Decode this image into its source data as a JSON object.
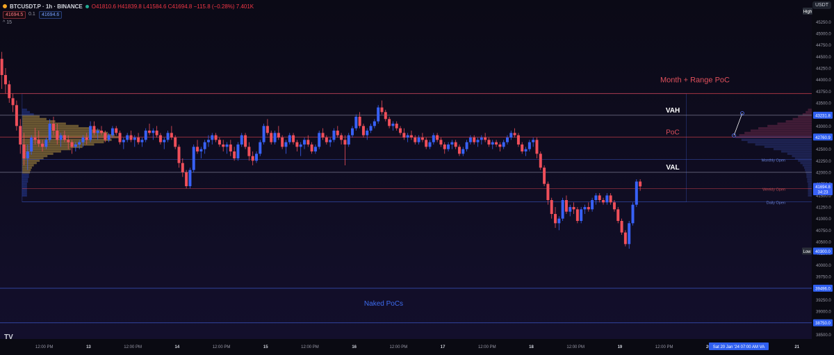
{
  "header": {
    "symbol": "BTCUSDT.P · 1h · BINANCE",
    "ohlc": "O41810.6  H41839.8  L41584.6  C41694.8  −115.8 (−0.28%)  7.401K",
    "sell_price": "41694.5",
    "spread": "0.1",
    "buy_price": "41694.6",
    "collapse_label": "^ 15",
    "currency": "USDT"
  },
  "colors": {
    "background": "#0a0a12",
    "up_candle": "#3861f6",
    "down_candle": "#ef4f5a",
    "poc_line": "#d9434f",
    "value_area_line": "#8a8aa0",
    "open_line": "#3d57c7",
    "profile_gold": "#b59442",
    "profile_blue": "#2d47b3"
  },
  "chart_data": {
    "type": "candlestick",
    "title": "BTCUSDT.P · 1h · BINANCE",
    "ylim": [
      38400,
      45600
    ],
    "y_ticks": [
      38500,
      38750,
      39000,
      39250,
      39500,
      39750,
      40000,
      40250,
      40500,
      40750,
      41000,
      41250,
      41500,
      41750,
      42000,
      42250,
      42500,
      42750,
      43000,
      43250,
      43500,
      43750,
      44000,
      44250,
      44500,
      44750,
      45000,
      45250
    ],
    "x_labels": [
      "12:00 PM",
      "13",
      "12:00 PM",
      "14",
      "12:00 PM",
      "15",
      "12:00 PM",
      "16",
      "12:00 PM",
      "17",
      "12:00 PM",
      "18",
      "12:00 PM",
      "19",
      "12:00 PM",
      "20",
      "21"
    ],
    "x_label_hours": [
      12,
      24,
      36,
      48,
      60,
      72,
      84,
      96,
      108,
      120,
      132,
      144,
      156,
      168,
      180,
      192,
      216
    ],
    "x_range_hours": [
      0,
      220
    ],
    "candles_hours_start": 0,
    "candles": [
      [
        44450,
        44600,
        43800,
        44100
      ],
      [
        44100,
        44250,
        43700,
        43900
      ],
      [
        43900,
        43980,
        43500,
        43600
      ],
      [
        43600,
        43700,
        43300,
        43450
      ],
      [
        43450,
        43550,
        42900,
        43000
      ],
      [
        43000,
        43150,
        42400,
        42600
      ],
      [
        42600,
        42850,
        42150,
        42300
      ],
      [
        42300,
        42600,
        42050,
        42450
      ],
      [
        42450,
        42800,
        42380,
        42750
      ],
      [
        42750,
        42960,
        42600,
        42700
      ],
      [
        42700,
        42900,
        42550,
        42620
      ],
      [
        42620,
        42700,
        42450,
        42550
      ],
      [
        42550,
        42750,
        42500,
        42700
      ],
      [
        42700,
        43150,
        42650,
        43050
      ],
      [
        43050,
        43200,
        42800,
        42900
      ],
      [
        42900,
        43050,
        42600,
        42700
      ],
      [
        42700,
        42850,
        42550,
        42800
      ],
      [
        42800,
        42900,
        42650,
        42700
      ],
      [
        42700,
        42800,
        42500,
        42650
      ],
      [
        42650,
        42700,
        42400,
        42550
      ],
      [
        42550,
        42650,
        42450,
        42600
      ],
      [
        42600,
        42700,
        42500,
        42650
      ],
      [
        42650,
        42800,
        42550,
        42750
      ],
      [
        42750,
        42850,
        42600,
        42700
      ],
      [
        42700,
        43100,
        42650,
        43000
      ],
      [
        43000,
        43100,
        42800,
        42850
      ],
      [
        42850,
        42950,
        42700,
        42900
      ],
      [
        42900,
        43000,
        42800,
        42850
      ],
      [
        42850,
        42900,
        42650,
        42700
      ],
      [
        42700,
        42850,
        42650,
        42800
      ],
      [
        42800,
        43000,
        42750,
        42950
      ],
      [
        42950,
        43000,
        42800,
        42850
      ],
      [
        42850,
        42900,
        42600,
        42650
      ],
      [
        42650,
        42750,
        42500,
        42700
      ],
      [
        42700,
        42850,
        42650,
        42800
      ],
      [
        42800,
        42900,
        42650,
        42700
      ],
      [
        42700,
        42800,
        42550,
        42750
      ],
      [
        42750,
        42850,
        42600,
        42650
      ],
      [
        42650,
        42750,
        42550,
        42700
      ],
      [
        42700,
        42950,
        42650,
        42900
      ],
      [
        42900,
        43050,
        42800,
        42850
      ],
      [
        42850,
        42950,
        42700,
        42900
      ],
      [
        42900,
        43000,
        42750,
        42800
      ],
      [
        42800,
        42850,
        42600,
        42650
      ],
      [
        42650,
        42750,
        42500,
        42700
      ],
      [
        42700,
        42900,
        42650,
        42850
      ],
      [
        42850,
        43000,
        42700,
        42750
      ],
      [
        42750,
        42800,
        42500,
        42550
      ],
      [
        42550,
        42600,
        42100,
        42200
      ],
      [
        42200,
        42300,
        41900,
        42000
      ],
      [
        42000,
        42050,
        41650,
        41700
      ],
      [
        41700,
        42100,
        41650,
        42050
      ],
      [
        42050,
        42600,
        42000,
        42550
      ],
      [
        42550,
        42700,
        42400,
        42450
      ],
      [
        42450,
        42550,
        42300,
        42500
      ],
      [
        42500,
        42700,
        42400,
        42650
      ],
      [
        42650,
        42800,
        42550,
        42700
      ],
      [
        42700,
        42850,
        42600,
        42800
      ],
      [
        42800,
        42850,
        42650,
        42700
      ],
      [
        42700,
        42750,
        42550,
        42600
      ],
      [
        42600,
        42700,
        42450,
        42550
      ],
      [
        42550,
        42650,
        42400,
        42600
      ],
      [
        42600,
        42700,
        42350,
        42450
      ],
      [
        42450,
        42550,
        42250,
        42300
      ],
      [
        42300,
        42650,
        42250,
        42600
      ],
      [
        42600,
        42850,
        42550,
        42800
      ],
      [
        42800,
        42850,
        42500,
        42550
      ],
      [
        42550,
        42650,
        42250,
        42350
      ],
      [
        42350,
        42450,
        42150,
        42250
      ],
      [
        42250,
        42450,
        42200,
        42400
      ],
      [
        42400,
        42700,
        42350,
        42650
      ],
      [
        42650,
        43050,
        42600,
        43000
      ],
      [
        43000,
        43150,
        42800,
        42850
      ],
      [
        42850,
        42900,
        42600,
        42650
      ],
      [
        42650,
        42900,
        42600,
        42850
      ],
      [
        42850,
        43000,
        42700,
        42750
      ],
      [
        42750,
        42800,
        42500,
        42550
      ],
      [
        42550,
        42700,
        42400,
        42650
      ],
      [
        42650,
        42850,
        42600,
        42800
      ],
      [
        42800,
        42850,
        42600,
        42650
      ],
      [
        42650,
        42700,
        42450,
        42550
      ],
      [
        42550,
        42650,
        42350,
        42600
      ],
      [
        42600,
        42750,
        42500,
        42700
      ],
      [
        42700,
        42800,
        42550,
        42600
      ],
      [
        42600,
        42650,
        42400,
        42450
      ],
      [
        42450,
        42600,
        42400,
        42550
      ],
      [
        42550,
        42900,
        42500,
        42850
      ],
      [
        42850,
        42950,
        42700,
        42750
      ],
      [
        42750,
        42800,
        42600,
        42650
      ],
      [
        42650,
        42750,
        42550,
        42700
      ],
      [
        42700,
        42950,
        42650,
        42900
      ],
      [
        42900,
        43000,
        42750,
        42800
      ],
      [
        42800,
        42850,
        42600,
        42700
      ],
      [
        42700,
        42800,
        42150,
        42600
      ],
      [
        42600,
        42850,
        42550,
        42800
      ],
      [
        42800,
        43000,
        42750,
        42950
      ],
      [
        42950,
        43250,
        42900,
        43200
      ],
      [
        43200,
        43300,
        42950,
        43000
      ],
      [
        43000,
        43050,
        42750,
        42800
      ],
      [
        42800,
        42950,
        42700,
        42900
      ],
      [
        42900,
        43050,
        42850,
        43000
      ],
      [
        43000,
        43150,
        42950,
        43100
      ],
      [
        43100,
        43450,
        43050,
        43400
      ],
      [
        43400,
        43550,
        43250,
        43300
      ],
      [
        43300,
        43350,
        43100,
        43150
      ],
      [
        43150,
        43200,
        42950,
        43000
      ],
      [
        43000,
        43100,
        42900,
        43050
      ],
      [
        43050,
        43100,
        42900,
        42950
      ],
      [
        42950,
        43000,
        42800,
        42850
      ],
      [
        42850,
        42950,
        42700,
        42750
      ],
      [
        42750,
        42850,
        42650,
        42800
      ],
      [
        42800,
        42900,
        42700,
        42750
      ],
      [
        42750,
        42800,
        42600,
        42650
      ],
      [
        42650,
        42800,
        42600,
        42750
      ],
      [
        42750,
        42850,
        42650,
        42700
      ],
      [
        42700,
        42750,
        42500,
        42550
      ],
      [
        42550,
        42700,
        42500,
        42650
      ],
      [
        42650,
        42850,
        42600,
        42800
      ],
      [
        42800,
        42850,
        42650,
        42700
      ],
      [
        42700,
        42750,
        42550,
        42600
      ],
      [
        42600,
        42650,
        42400,
        42500
      ],
      [
        42500,
        42650,
        42450,
        42600
      ],
      [
        42600,
        42700,
        42500,
        42650
      ],
      [
        42650,
        42700,
        42500,
        42550
      ],
      [
        42550,
        42600,
        42350,
        42400
      ],
      [
        42400,
        42550,
        42350,
        42500
      ],
      [
        42500,
        42700,
        42450,
        42650
      ],
      [
        42650,
        42800,
        42600,
        42750
      ],
      [
        42750,
        42800,
        42600,
        42650
      ],
      [
        42650,
        42750,
        42550,
        42700
      ],
      [
        42700,
        42800,
        42600,
        42750
      ],
      [
        42750,
        42850,
        42650,
        42700
      ],
      [
        42700,
        42750,
        42550,
        42600
      ],
      [
        42600,
        42700,
        42500,
        42650
      ],
      [
        42650,
        42700,
        42550,
        42600
      ],
      [
        42600,
        42650,
        42450,
        42550
      ],
      [
        42550,
        42700,
        42500,
        42650
      ],
      [
        42650,
        42800,
        42600,
        42750
      ],
      [
        42750,
        42900,
        42700,
        42850
      ],
      [
        42850,
        42950,
        42750,
        42800
      ],
      [
        42800,
        42850,
        42550,
        42600
      ],
      [
        42600,
        42650,
        42400,
        42450
      ],
      [
        42450,
        42550,
        42350,
        42500
      ],
      [
        42500,
        42700,
        42450,
        42650
      ],
      [
        42650,
        42750,
        42550,
        42700
      ],
      [
        42700,
        42750,
        42300,
        42400
      ],
      [
        42400,
        42450,
        42050,
        42100
      ],
      [
        42100,
        42150,
        41700,
        41750
      ],
      [
        41750,
        41800,
        41300,
        41400
      ],
      [
        41400,
        41450,
        41000,
        41100
      ],
      [
        41100,
        41250,
        40800,
        40900
      ],
      [
        40900,
        41050,
        40750,
        41000
      ],
      [
        41000,
        41450,
        40950,
        41400
      ],
      [
        41400,
        41500,
        41100,
        41150
      ],
      [
        41150,
        41300,
        41050,
        41250
      ],
      [
        41250,
        41350,
        41100,
        41200
      ],
      [
        41200,
        41250,
        40900,
        40950
      ],
      [
        40950,
        41250,
        40900,
        41200
      ],
      [
        41200,
        41300,
        41100,
        41250
      ],
      [
        41250,
        41350,
        41150,
        41200
      ],
      [
        41200,
        41450,
        41150,
        41400
      ],
      [
        41400,
        41550,
        41300,
        41500
      ],
      [
        41500,
        41550,
        41350,
        41400
      ],
      [
        41400,
        41450,
        41300,
        41350
      ],
      [
        41350,
        41550,
        41300,
        41500
      ],
      [
        41500,
        41550,
        41300,
        41350
      ],
      [
        41350,
        41400,
        41150,
        41200
      ],
      [
        41200,
        41250,
        40900,
        40950
      ],
      [
        40950,
        41000,
        40650,
        40700
      ],
      [
        40700,
        40750,
        40400,
        40450
      ],
      [
        40450,
        40950,
        40350,
        40900
      ],
      [
        40900,
        41350,
        40850,
        41300
      ],
      [
        41300,
        41850,
        41250,
        41800
      ],
      [
        41800,
        41850,
        41600,
        41695
      ]
    ],
    "volume_profile": [
      [
        43350,
        0.05
      ],
      [
        43300,
        0.08
      ],
      [
        43250,
        0.12
      ],
      [
        43200,
        0.18
      ],
      [
        43150,
        0.25
      ],
      [
        43100,
        0.34
      ],
      [
        43050,
        0.45
      ],
      [
        43000,
        0.58
      ],
      [
        42950,
        0.7
      ],
      [
        42900,
        0.8
      ],
      [
        42850,
        0.88
      ],
      [
        42800,
        0.95
      ],
      [
        42760,
        1.0
      ],
      [
        42700,
        0.92
      ],
      [
        42650,
        0.84
      ],
      [
        42600,
        0.74
      ],
      [
        42550,
        0.62
      ],
      [
        42500,
        0.5
      ],
      [
        42450,
        0.4
      ],
      [
        42400,
        0.32
      ],
      [
        42350,
        0.26
      ],
      [
        42300,
        0.22
      ],
      [
        42250,
        0.18
      ],
      [
        42200,
        0.15
      ],
      [
        42150,
        0.12
      ],
      [
        42100,
        0.1
      ],
      [
        42050,
        0.09
      ],
      [
        42000,
        0.08
      ],
      [
        41950,
        0.07
      ],
      [
        41900,
        0.07
      ],
      [
        41850,
        0.06
      ],
      [
        41800,
        0.06
      ],
      [
        41750,
        0.05
      ],
      [
        41700,
        0.05
      ],
      [
        41650,
        0.05
      ],
      [
        41600,
        0.05
      ],
      [
        41550,
        0.05
      ],
      [
        41500,
        0.05
      ]
    ],
    "levels": [
      {
        "label": "Month + Range PoC",
        "price": 43700,
        "color": "#d9434f"
      },
      {
        "label": "VAH",
        "price": 43231.8,
        "color": "#8a8aa0"
      },
      {
        "label": "PoC",
        "price": 42760.9,
        "color": "#d9434f"
      },
      {
        "label": "VAL",
        "price": 42000,
        "color": "#8a8aa0"
      },
      {
        "label": "Naked PoCs",
        "price": 39496.0,
        "color": "#3d57c7"
      },
      {
        "label": "",
        "price": 38750.0,
        "color": "#3d57c7"
      }
    ],
    "small_lines": [
      {
        "label": "Monthly Open",
        "price": 42280,
        "color": "#3d57c7"
      },
      {
        "label": "Weekly Open",
        "price": 41650,
        "color": "#d9434f"
      },
      {
        "label": "Daily Open",
        "price": 41360,
        "color": "#3d57c7"
      }
    ],
    "price_tags": [
      {
        "text": "High",
        "price": 45600,
        "kind": "highlow"
      },
      {
        "text": "43231.8",
        "price": 43231.8,
        "kind": "tag"
      },
      {
        "text": "42760.9",
        "price": 42760.9,
        "kind": "tag"
      },
      {
        "text": "41694.8",
        "price": 41694.8,
        "kind": "current"
      },
      {
        "text": "34:23",
        "price": 41580,
        "kind": "current"
      },
      {
        "text": "40300.0",
        "price": 40300,
        "kind": "tag"
      },
      {
        "text": "Low",
        "price": 40300,
        "kind": "highlow-low"
      },
      {
        "text": "39496.0",
        "price": 39496.0,
        "kind": "tag"
      },
      {
        "text": "38750.0",
        "price": 38750.0,
        "kind": "tag"
      }
    ],
    "crosshair_label": "Sat 20 Jan '24   07:00 AM   VA",
    "grid": false
  }
}
